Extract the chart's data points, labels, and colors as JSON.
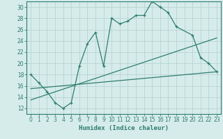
{
  "title": "",
  "xlabel": "Humidex (Indice chaleur)",
  "background_color": "#d6ecea",
  "grid_color": "#b8d4d0",
  "line_color": "#2e7d70",
  "xlim": [
    -0.5,
    23.5
  ],
  "ylim": [
    11,
    31
  ],
  "xticks": [
    0,
    1,
    2,
    3,
    4,
    5,
    6,
    7,
    8,
    9,
    10,
    11,
    12,
    13,
    14,
    15,
    16,
    17,
    18,
    19,
    20,
    21,
    22,
    23
  ],
  "yticks": [
    12,
    14,
    16,
    18,
    20,
    22,
    24,
    26,
    28,
    30
  ],
  "series1_x": [
    0,
    1,
    2,
    3,
    4,
    5,
    6,
    7,
    8,
    9,
    10,
    11,
    12,
    13,
    14,
    15,
    16,
    17,
    18,
    20,
    21,
    22,
    23
  ],
  "series1_y": [
    18,
    16.5,
    15,
    13,
    12,
    13,
    19.5,
    23.5,
    25.5,
    19.5,
    28,
    27,
    27.5,
    28.5,
    28.5,
    31,
    30,
    29,
    26.5,
    25,
    21,
    20,
    18.5
  ],
  "series2_x": [
    0,
    23
  ],
  "series2_y": [
    15.5,
    18.5
  ],
  "series3_x": [
    0,
    23
  ],
  "series3_y": [
    13.5,
    24.5
  ],
  "font_color": "#2e7d70",
  "xlabel_fontsize": 6.5,
  "tick_fontsize": 5.5
}
